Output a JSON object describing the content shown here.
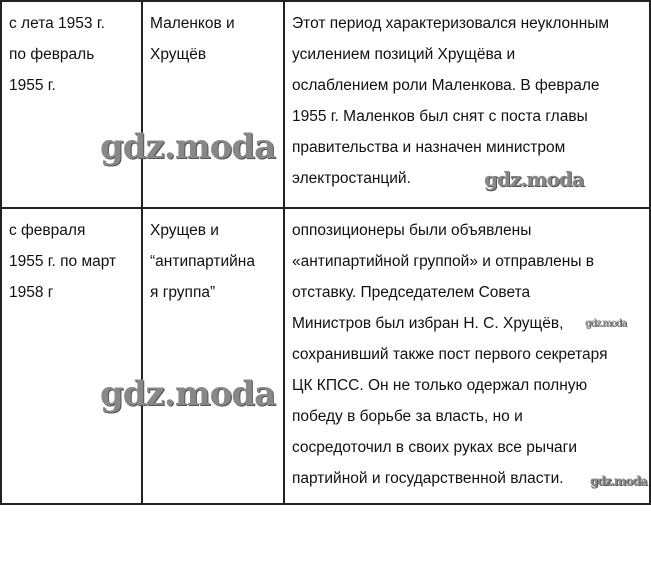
{
  "table": {
    "rows": [
      {
        "period": [
          "с лета 1953 г.",
          "по февраль",
          "1955 г."
        ],
        "actors": [
          "Маленков и",
          "Хрущёв"
        ],
        "description": [
          "Этот период характеризовался неуклонным",
          "усилением позиций Хрущёва и",
          "ослаблением роли Маленкова. В феврале",
          "1955 г. Маленков был снят с поста главы",
          "правительства и назначен министром",
          "электростанций."
        ]
      },
      {
        "period": [
          "с февраля",
          "1955 г. по март",
          "1958 г"
        ],
        "actors": [
          "Хрущев и",
          "“антипартийна",
          "я группа”"
        ],
        "description": [
          "оппозиционеры были объявлены",
          "«антипартийной группой» и отправлены в",
          "отставку. Председателем Совета",
          "Министров был избран Н. С. Хрущёв,",
          "сохранивший также пост первого секретаря",
          "ЦК КПСС. Он не только одержал полную",
          "победу в борьбе за власть, но и",
          "сосредоточил в своих руках все рычаги",
          "партийной и государственной власти."
        ]
      }
    ]
  },
  "watermark": "gdz.moda"
}
